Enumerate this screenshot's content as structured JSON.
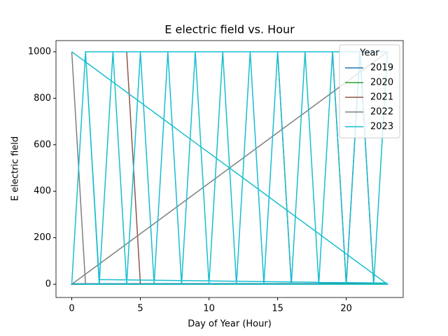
{
  "chart_data": {
    "type": "line",
    "title": "E electric field vs. Hour",
    "x_label": "Day of Year (Hour)",
    "y_label": "E electric field",
    "xlim": [
      -1.15,
      24.15
    ],
    "xticks": [
      0,
      5,
      10,
      15,
      20
    ],
    "ylim": [
      -57,
      1048
    ],
    "yticks": [
      0,
      200,
      400,
      600,
      800,
      1000
    ],
    "legend_title": "Year",
    "legend_position": "upper right",
    "series": [
      {
        "name": "2019",
        "color": "#1f77b4",
        "x": [
          0,
          23
        ],
        "values": [
          2,
          3
        ]
      },
      {
        "name": "2020",
        "color": "#2ca02c",
        "x": [
          0,
          23
        ],
        "values": [
          0,
          1
        ]
      },
      {
        "name": "2021",
        "color": "#8c564b",
        "x": [
          4,
          5,
          6,
          15,
          16,
          17,
          19,
          20,
          21,
          22
        ],
        "values": [
          1000,
          0,
          null,
          1000,
          0,
          null,
          1000,
          0,
          1000,
          0
        ]
      },
      {
        "name": "2022",
        "color": "#7f7f7f",
        "x": [
          0,
          1,
          0,
          23
        ],
        "values": [
          1000,
          0,
          0,
          1000
        ]
      },
      {
        "name": "2023",
        "color": "#17becf",
        "x": [
          0,
          23,
          0,
          1,
          2,
          3,
          4,
          5,
          6,
          7,
          8,
          9,
          10,
          11,
          12,
          13,
          14,
          15,
          16,
          17,
          18,
          19,
          20,
          21,
          22,
          23,
          1,
          2,
          23
        ],
        "values": [
          1000,
          0,
          0,
          1000,
          0,
          1000,
          0,
          1000,
          0,
          1000,
          0,
          1000,
          0,
          1000,
          0,
          1000,
          0,
          1000,
          0,
          1000,
          0,
          1000,
          0,
          1000,
          0,
          1000,
          1000,
          20,
          5
        ]
      }
    ]
  }
}
